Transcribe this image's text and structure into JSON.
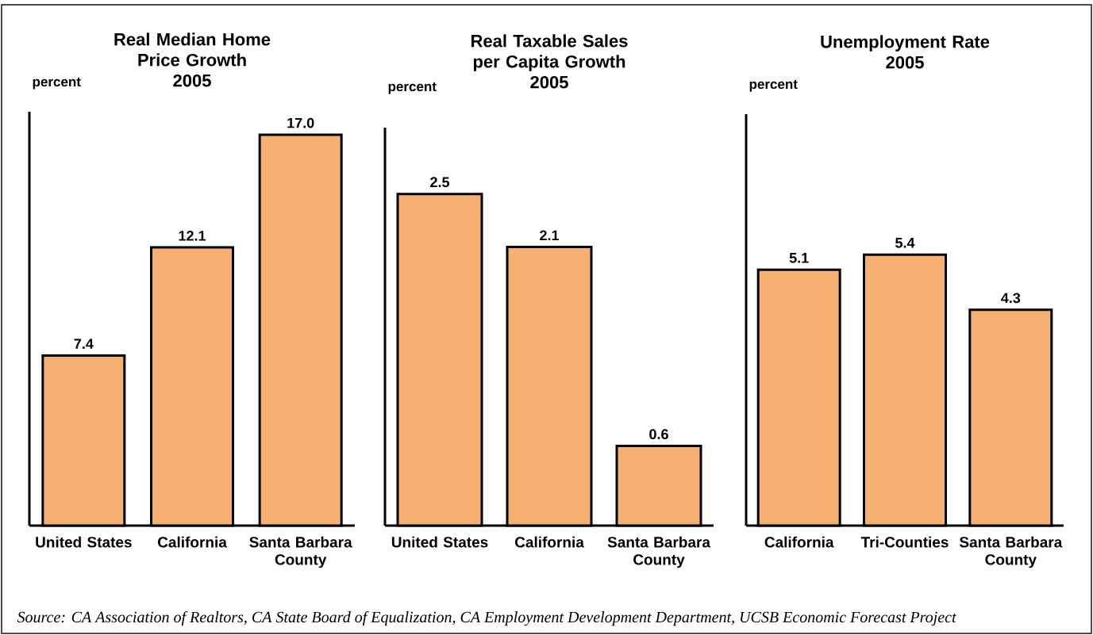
{
  "chart_data": [
    {
      "type": "bar",
      "title": "Real Median Home Price Growth",
      "subtitle": "2005",
      "ylabel": "percent",
      "categories": [
        "United States",
        "California",
        "Santa Barbara County"
      ],
      "values": [
        7.4,
        12.1,
        17.0
      ],
      "value_labels": [
        "7.4",
        "12.1",
        "17.0"
      ],
      "color": "#f5b072",
      "ylim": [
        0,
        18
      ],
      "annotations": [
        "Source: CA Association of Realtors, CA State Board of Equalization, CA Employment Development Department, UCSB Economic Forecast Project"
      ]
    },
    {
      "type": "bar",
      "title": "Real Taxable Sales per Capita Growth",
      "subtitle": "2005",
      "ylabel": "percent",
      "categories": [
        "United States",
        "California",
        "Santa Barbara County"
      ],
      "values": [
        2.5,
        2.1,
        0.6
      ],
      "value_labels": [
        "2.5",
        "2.1",
        "0.6"
      ],
      "color": "#f5b072",
      "ylim": [
        0,
        3
      ]
    },
    {
      "type": "bar",
      "title": "Unemployment Rate",
      "subtitle": "2005",
      "ylabel": "percent",
      "categories": [
        "California",
        "Tri-Counties",
        "Santa Barbara County"
      ],
      "values": [
        5.1,
        5.4,
        4.3
      ],
      "value_labels": [
        "5.1",
        "5.4",
        "4.3"
      ],
      "color": "#f5b072",
      "ylim": [
        0,
        8.2
      ]
    }
  ]
}
